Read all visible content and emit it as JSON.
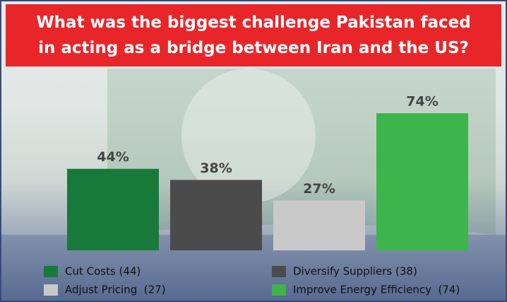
{
  "chart_data": {
    "type": "bar",
    "title": "What was the biggest challenge Pakistan faced in acting as a bridge between Iran and the US?",
    "categories": [
      "Cut Costs (44)",
      "Diversify Suppliers (38)",
      "Adjust Pricing  (27)",
      "Improve Energy Efficiency  (74)"
    ],
    "values": [
      44,
      38,
      27,
      74
    ],
    "value_labels": [
      "44%",
      "38%",
      "27%",
      "74%"
    ],
    "colors": [
      "#187a3a",
      "#4b4b4b",
      "#c9c9c9",
      "#3db54b"
    ],
    "legend": "bottom"
  }
}
